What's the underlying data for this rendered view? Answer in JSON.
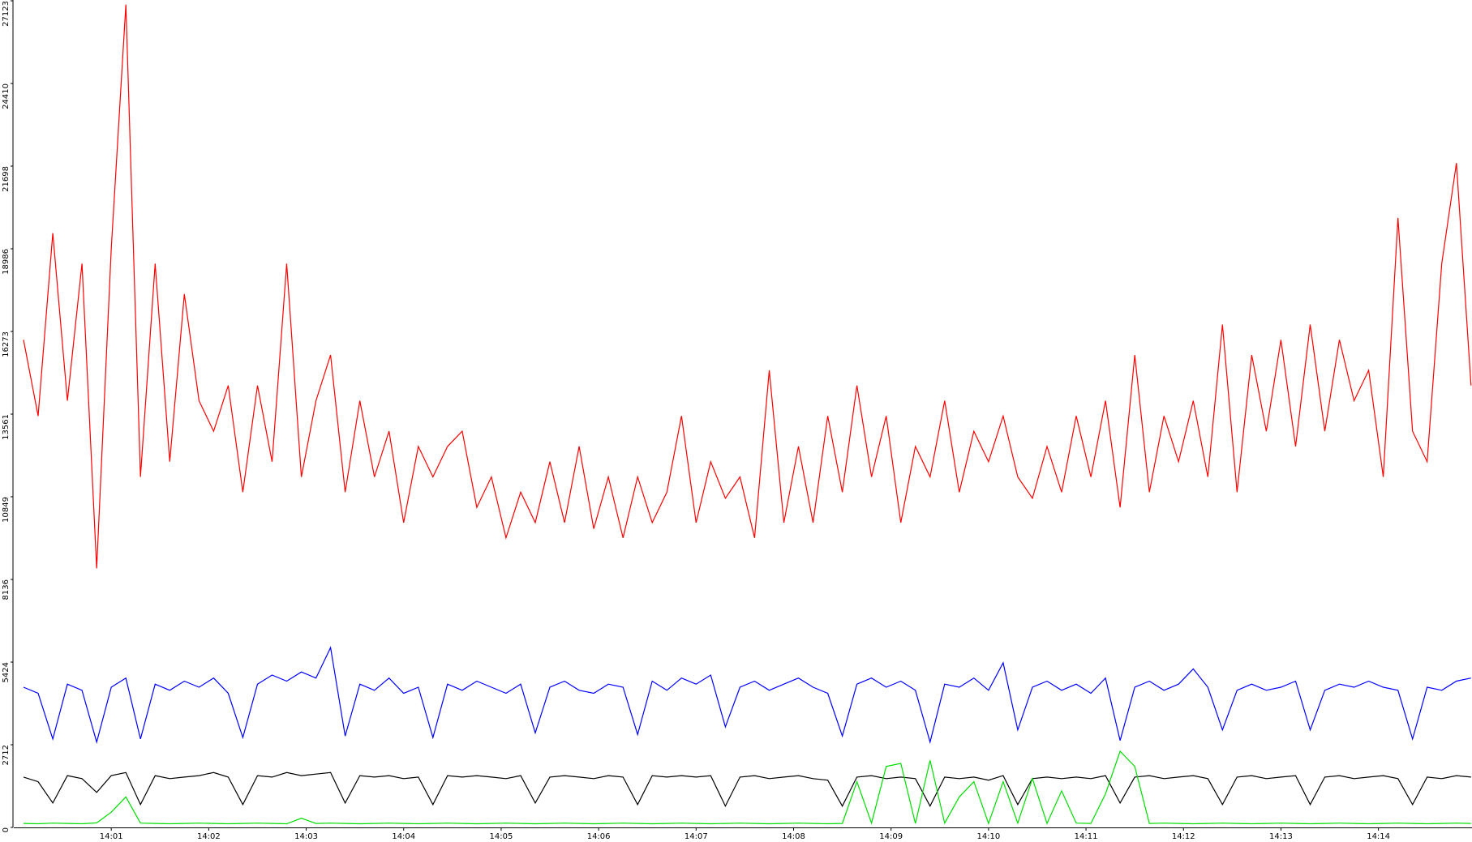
{
  "chart_data": {
    "type": "line",
    "x": [
      0.1,
      0.25,
      0.4,
      0.55,
      0.7,
      0.85,
      1.0,
      1.15,
      1.3,
      1.45,
      1.6,
      1.75,
      1.9,
      2.05,
      2.2,
      2.35,
      2.5,
      2.65,
      2.8,
      2.95,
      3.1,
      3.25,
      3.4,
      3.55,
      3.7,
      3.85,
      4.0,
      4.15,
      4.3,
      4.45,
      4.6,
      4.75,
      4.9,
      5.05,
      5.2,
      5.35,
      5.5,
      5.65,
      5.8,
      5.95,
      6.1,
      6.25,
      6.4,
      6.55,
      6.7,
      6.85,
      7.0,
      7.15,
      7.3,
      7.45,
      7.6,
      7.75,
      7.9,
      8.05,
      8.2,
      8.35,
      8.5,
      8.65,
      8.8,
      8.95,
      9.1,
      9.25,
      9.4,
      9.55,
      9.7,
      9.85,
      10.0,
      10.15,
      10.3,
      10.45,
      10.6,
      10.75,
      10.9,
      11.05,
      11.2,
      11.35,
      11.5,
      11.65,
      11.8,
      11.95,
      12.1,
      12.25,
      12.4,
      12.55,
      12.7,
      12.85,
      13.0,
      13.15,
      13.3,
      13.45,
      13.6,
      13.75,
      13.9,
      14.05,
      14.2,
      14.35,
      14.5,
      14.65,
      14.8,
      14.95
    ],
    "series": [
      {
        "color": "#ff0000",
        "values": [
          16000,
          13500,
          19500,
          14000,
          18500,
          8500,
          19000,
          27000,
          11500,
          18500,
          12000,
          17500,
          14000,
          13000,
          14500,
          11000,
          14500,
          12000,
          18500,
          11500,
          14000,
          15500,
          11000,
          14000,
          11500,
          13000,
          10000,
          12500,
          11500,
          12500,
          13000,
          10500,
          11500,
          9500,
          11000,
          10000,
          12000,
          10000,
          12500,
          9800,
          11500,
          9500,
          11500,
          10000,
          11000,
          13500,
          10000,
          12000,
          10800,
          11500,
          9500,
          15000,
          10000,
          12500,
          10000,
          13500,
          11000,
          14500,
          11500,
          13500,
          10000,
          12500,
          11500,
          14000,
          11000,
          13000,
          12000,
          13500,
          11500,
          10800,
          12500,
          11000,
          13500,
          11500,
          14000,
          10500,
          15500,
          11000,
          13500,
          12000,
          14000,
          11500,
          16500,
          11000,
          15500,
          13000,
          16000,
          12500,
          16500,
          13000,
          16000,
          14000,
          15000,
          11500,
          20000,
          13000,
          12000,
          18500,
          21800,
          14500
        ]
      },
      {
        "color": "#0000ff",
        "values": [
          4600,
          4400,
          2900,
          4700,
          4500,
          2800,
          4600,
          4900,
          2900,
          4700,
          4500,
          4800,
          4600,
          4900,
          4400,
          2950,
          4700,
          5000,
          4800,
          5100,
          4900,
          5900,
          3000,
          4700,
          4500,
          4900,
          4400,
          4600,
          2950,
          4700,
          4500,
          4800,
          4600,
          4400,
          4700,
          3100,
          4600,
          4800,
          4500,
          4400,
          4700,
          4600,
          3050,
          4800,
          4500,
          4900,
          4700,
          5000,
          3300,
          4600,
          4800,
          4500,
          4700,
          4900,
          4600,
          4400,
          3000,
          4700,
          4900,
          4600,
          4800,
          4500,
          2800,
          4700,
          4600,
          4900,
          4500,
          5400,
          3200,
          4600,
          4800,
          4500,
          4700,
          4400,
          4900,
          2850,
          4600,
          4800,
          4500,
          4700,
          5200,
          4600,
          3200,
          4500,
          4700,
          4500,
          4600,
          4800,
          3200,
          4500,
          4700,
          4600,
          4800,
          4600,
          4500,
          2900,
          4600,
          4500,
          4800,
          4900
        ]
      },
      {
        "color": "#000000",
        "values": [
          1650,
          1500,
          800,
          1700,
          1600,
          1150,
          1700,
          1800,
          750,
          1700,
          1600,
          1650,
          1700,
          1800,
          1650,
          750,
          1700,
          1650,
          1800,
          1700,
          1750,
          1800,
          800,
          1700,
          1650,
          1700,
          1600,
          1650,
          750,
          1700,
          1650,
          1700,
          1650,
          1600,
          1700,
          800,
          1650,
          1700,
          1650,
          1600,
          1700,
          1650,
          750,
          1700,
          1650,
          1700,
          1650,
          1700,
          700,
          1650,
          1700,
          1600,
          1650,
          1700,
          1600,
          1550,
          700,
          1650,
          1700,
          1600,
          1650,
          1600,
          700,
          1650,
          1600,
          1650,
          1550,
          1700,
          750,
          1600,
          1650,
          1600,
          1650,
          1600,
          1700,
          800,
          1650,
          1700,
          1600,
          1650,
          1700,
          1600,
          750,
          1650,
          1700,
          1600,
          1650,
          1700,
          750,
          1650,
          1700,
          1600,
          1650,
          1700,
          1600,
          750,
          1650,
          1600,
          1700,
          1650
        ]
      },
      {
        "color": "#00dd00",
        "values": [
          130,
          120,
          140,
          130,
          120,
          150,
          500,
          1000,
          140,
          130,
          120,
          130,
          140,
          130,
          120,
          130,
          140,
          130,
          120,
          300,
          130,
          140,
          130,
          120,
          130,
          140,
          130,
          120,
          130,
          140,
          130,
          120,
          130,
          140,
          130,
          120,
          130,
          140,
          130,
          120,
          130,
          140,
          130,
          120,
          130,
          140,
          130,
          120,
          130,
          140,
          130,
          120,
          130,
          140,
          130,
          120,
          130,
          1500,
          140,
          2000,
          2100,
          130,
          2200,
          140,
          1000,
          1500,
          130,
          1500,
          140,
          1600,
          130,
          1200,
          140,
          130,
          1100,
          2500,
          2000,
          130,
          140,
          130,
          120,
          130,
          140,
          130,
          120,
          130,
          140,
          130,
          120,
          130,
          140,
          130,
          120,
          130,
          140,
          130,
          120,
          130,
          140,
          130
        ]
      }
    ],
    "xlim": [
      0,
      14.96
    ],
    "xticks": [
      {
        "value": 1,
        "label": "14:01"
      },
      {
        "value": 2,
        "label": "14:02"
      },
      {
        "value": 3,
        "label": "14:03"
      },
      {
        "value": 4,
        "label": "14:04"
      },
      {
        "value": 5,
        "label": "14:05"
      },
      {
        "value": 6,
        "label": "14:06"
      },
      {
        "value": 7,
        "label": "14:07"
      },
      {
        "value": 8,
        "label": "14:08"
      },
      {
        "value": 9,
        "label": "14:09"
      },
      {
        "value": 10,
        "label": "14:10"
      },
      {
        "value": 11,
        "label": "14:11"
      },
      {
        "value": 12,
        "label": "14:12"
      },
      {
        "value": 13,
        "label": "14:13"
      },
      {
        "value": 14,
        "label": "14:14"
      }
    ],
    "ylim": [
      0,
      27123
    ],
    "yticks": [
      0,
      2712,
      5424,
      8136,
      10849,
      13561,
      16273,
      18986,
      21698,
      24410,
      27123
    ],
    "grid": false
  }
}
